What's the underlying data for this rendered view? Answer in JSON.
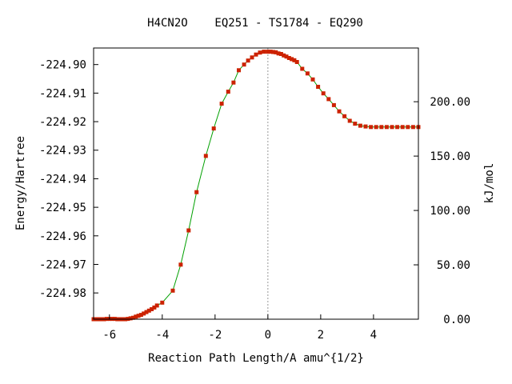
{
  "chart_data": {
    "type": "line",
    "title": "H4CN2O    EQ251 - TS1784 - EQ290",
    "xlabel": "Reaction Path Length/A amu^{1/2}",
    "ylabel": "Energy/Hartree",
    "y2label": "kJ/mol",
    "xlim": [
      -6.6,
      5.7
    ],
    "ylim": [
      -224.9892,
      -224.8942
    ],
    "y2lim": [
      0,
      249.4
    ],
    "x_ticks": [
      -6,
      -4,
      -2,
      0,
      2,
      4
    ],
    "x_tick_labels": [
      "-6",
      "-4",
      "-2",
      "0",
      "2",
      "4"
    ],
    "y_ticks": [
      -224.9,
      -224.91,
      -224.92,
      -224.93,
      -224.94,
      -224.95,
      -224.96,
      -224.97,
      -224.98
    ],
    "y_tick_labels": [
      "-224.90",
      "-224.91",
      "-224.92",
      "-224.93",
      "-224.94",
      "-224.95",
      "-224.96",
      "-224.97",
      "-224.98"
    ],
    "y2_ticks": [
      0,
      50,
      100,
      150,
      200
    ],
    "y2_tick_labels": [
      "0.00",
      "50.00",
      "100.00",
      "150.00",
      "200.00"
    ],
    "ts_x": 0,
    "grid": false,
    "colors": {
      "line": "#00a000",
      "marker": "#cc2200",
      "ts_line": "#999999"
    },
    "series": [
      {
        "x": [
          -6.6,
          -6.5,
          -6.4,
          -6.3,
          -6.2,
          -6.1,
          -6.0,
          -5.9,
          -5.8,
          -5.7,
          -5.6,
          -5.5,
          -5.4,
          -5.3,
          -5.2,
          -5.1,
          -5.0,
          -4.9,
          -4.8,
          -4.7,
          -4.6,
          -4.5,
          -4.4,
          -4.3,
          -4.2,
          -4.0,
          -3.6,
          -3.3,
          -3.0,
          -2.7,
          -2.35,
          -2.05,
          -1.75,
          -1.5,
          -1.3,
          -1.1,
          -0.9,
          -0.75,
          -0.6,
          -0.45,
          -0.3,
          -0.15,
          0.0,
          0.1,
          0.2,
          0.3,
          0.4,
          0.5,
          0.6,
          0.7,
          0.8,
          0.9,
          1.0,
          1.1,
          1.3,
          1.5,
          1.7,
          1.9,
          2.1,
          2.3,
          2.5,
          2.7,
          2.9,
          3.1,
          3.3,
          3.5,
          3.7,
          3.9,
          4.1,
          4.3,
          4.5,
          4.7,
          4.9,
          5.1,
          5.3,
          5.5,
          5.7
        ],
        "y": [
          -224.9892,
          -224.9892,
          -224.9892,
          -224.9892,
          -224.9892,
          -224.9891,
          -224.9891,
          -224.9891,
          -224.9891,
          -224.9892,
          -224.9892,
          -224.9892,
          -224.9892,
          -224.9891,
          -224.9889,
          -224.9887,
          -224.9883,
          -224.988,
          -224.9877,
          -224.9872,
          -224.9867,
          -224.9862,
          -224.9857,
          -224.9851,
          -224.9844,
          -224.9834,
          -224.9792,
          -224.9701,
          -224.9581,
          -224.9447,
          -224.932,
          -224.9224,
          -224.9137,
          -224.9095,
          -224.9063,
          -224.902,
          -224.9,
          -224.8986,
          -224.8975,
          -224.8965,
          -224.8958,
          -224.8955,
          -224.8955,
          -224.8955,
          -224.8956,
          -224.8957,
          -224.8961,
          -224.8963,
          -224.8968,
          -224.8972,
          -224.8977,
          -224.8981,
          -224.8985,
          -224.8991,
          -224.9015,
          -224.9031,
          -224.9052,
          -224.9078,
          -224.9101,
          -224.9121,
          -224.9142,
          -224.9164,
          -224.9181,
          -224.9197,
          -224.9207,
          -224.9214,
          -224.9217,
          -224.9219,
          -224.9219,
          -224.9219,
          -224.9219,
          -224.9219,
          -224.9219,
          -224.9219,
          -224.9219,
          -224.9219,
          -224.9219
        ]
      }
    ]
  }
}
